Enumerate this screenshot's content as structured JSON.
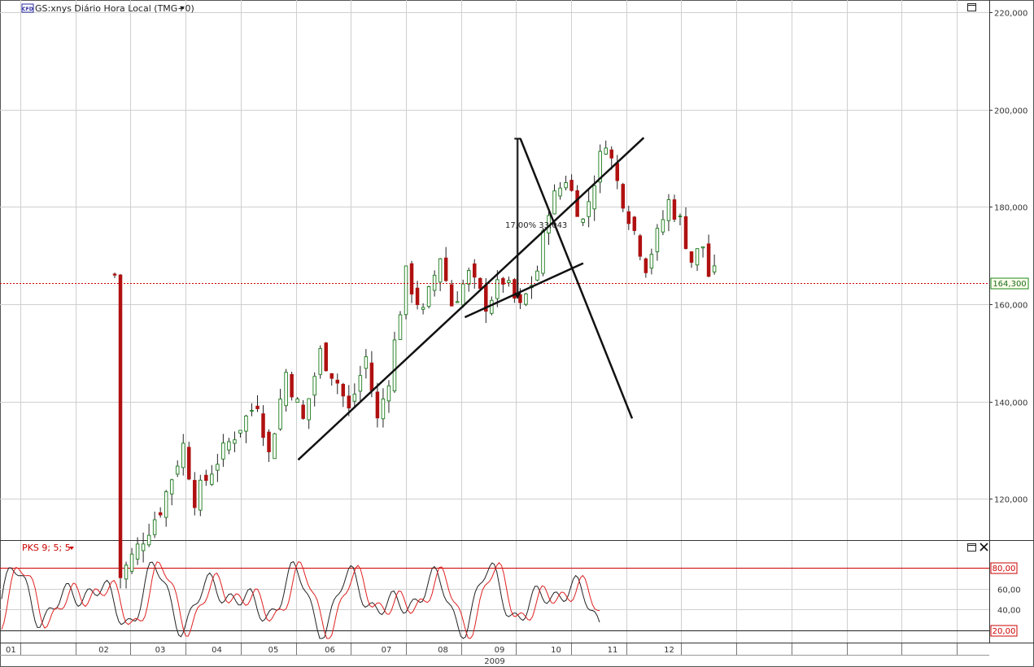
{
  "header": {
    "badge": "CFD",
    "title": "GS:xnys Diário Hora Local (TMG+0)"
  },
  "indicator": {
    "title": "PKS 9; 5; 5"
  },
  "colors": {
    "up": "#1a7a1a",
    "down": "#b01010",
    "grid": "#cfcfcf",
    "stoch_k": "#222222",
    "stoch_d": "#e02020",
    "hline": "#cc0000"
  },
  "chart_data": [
    {
      "type": "candlestick",
      "title": "GS:xnys Diário Hora Local (TMG+0)",
      "x_ticks": [
        "01",
        "02",
        "03",
        "04",
        "05",
        "06",
        "07",
        "08",
        "09",
        "10",
        "11",
        "12"
      ],
      "x_group_label": "2009",
      "y_ticks": [
        "120,000",
        "140,000",
        "160,000",
        "180,000",
        "200,000",
        "220,000"
      ],
      "y_tick_values": [
        120,
        140,
        160,
        180,
        200,
        220
      ],
      "ylim": [
        111.5,
        222.5
      ],
      "current_price": {
        "value": 164.3,
        "label": "164,300"
      },
      "anchors": [
        [
          1,
          104
        ],
        [
          4,
          110
        ],
        [
          8,
          118
        ],
        [
          12,
          131
        ],
        [
          14,
          120
        ],
        [
          18,
          128
        ],
        [
          22,
          135
        ],
        [
          25,
          140
        ],
        [
          27,
          129
        ],
        [
          30,
          146
        ],
        [
          33,
          136
        ],
        [
          36,
          150
        ],
        [
          39,
          144
        ],
        [
          41,
          138
        ],
        [
          44,
          149
        ],
        [
          46,
          136
        ],
        [
          48,
          145
        ],
        [
          51,
          166
        ],
        [
          54,
          158
        ],
        [
          57,
          170
        ],
        [
          59,
          160
        ],
        [
          62,
          166
        ],
        [
          65,
          160
        ],
        [
          68,
          165
        ],
        [
          71,
          159
        ],
        [
          74,
          167
        ],
        [
          76,
          180
        ],
        [
          79,
          186
        ],
        [
          82,
          177
        ],
        [
          85,
          190
        ],
        [
          86,
          194
        ],
        [
          88,
          185
        ],
        [
          91,
          175
        ],
        [
          93,
          168
        ],
        [
          95,
          174
        ],
        [
          97,
          181
        ],
        [
          99,
          177
        ],
        [
          101,
          169
        ],
        [
          103,
          172
        ],
        [
          104,
          166
        ]
      ],
      "annotations": {
        "measure_label": "17,00% 33,043",
        "trendlines": [
          {
            "from": [
              5.0,
              128.0
            ],
            "to": [
              11.22,
              194.2
            ]
          },
          {
            "from": [
              8.0,
              157.3
            ],
            "to": [
              10.13,
              168.4
            ]
          },
          {
            "from": [
              9.0,
              194.0
            ],
            "to": [
              11.01,
              136.5
            ]
          }
        ],
        "measure_arrow": {
          "x": 8.95,
          "from": 194.0,
          "to": 161.0
        }
      }
    },
    {
      "type": "line",
      "title": "PKS 9; 5; 5",
      "y_ticks": [
        "40,00",
        "60,00"
      ],
      "y_tick_values": [
        40,
        60
      ],
      "ylim": [
        8,
        106
      ],
      "levels": [
        {
          "value": 80,
          "label": "80,00"
        },
        {
          "value": 20,
          "label": "20,00"
        }
      ]
    }
  ]
}
